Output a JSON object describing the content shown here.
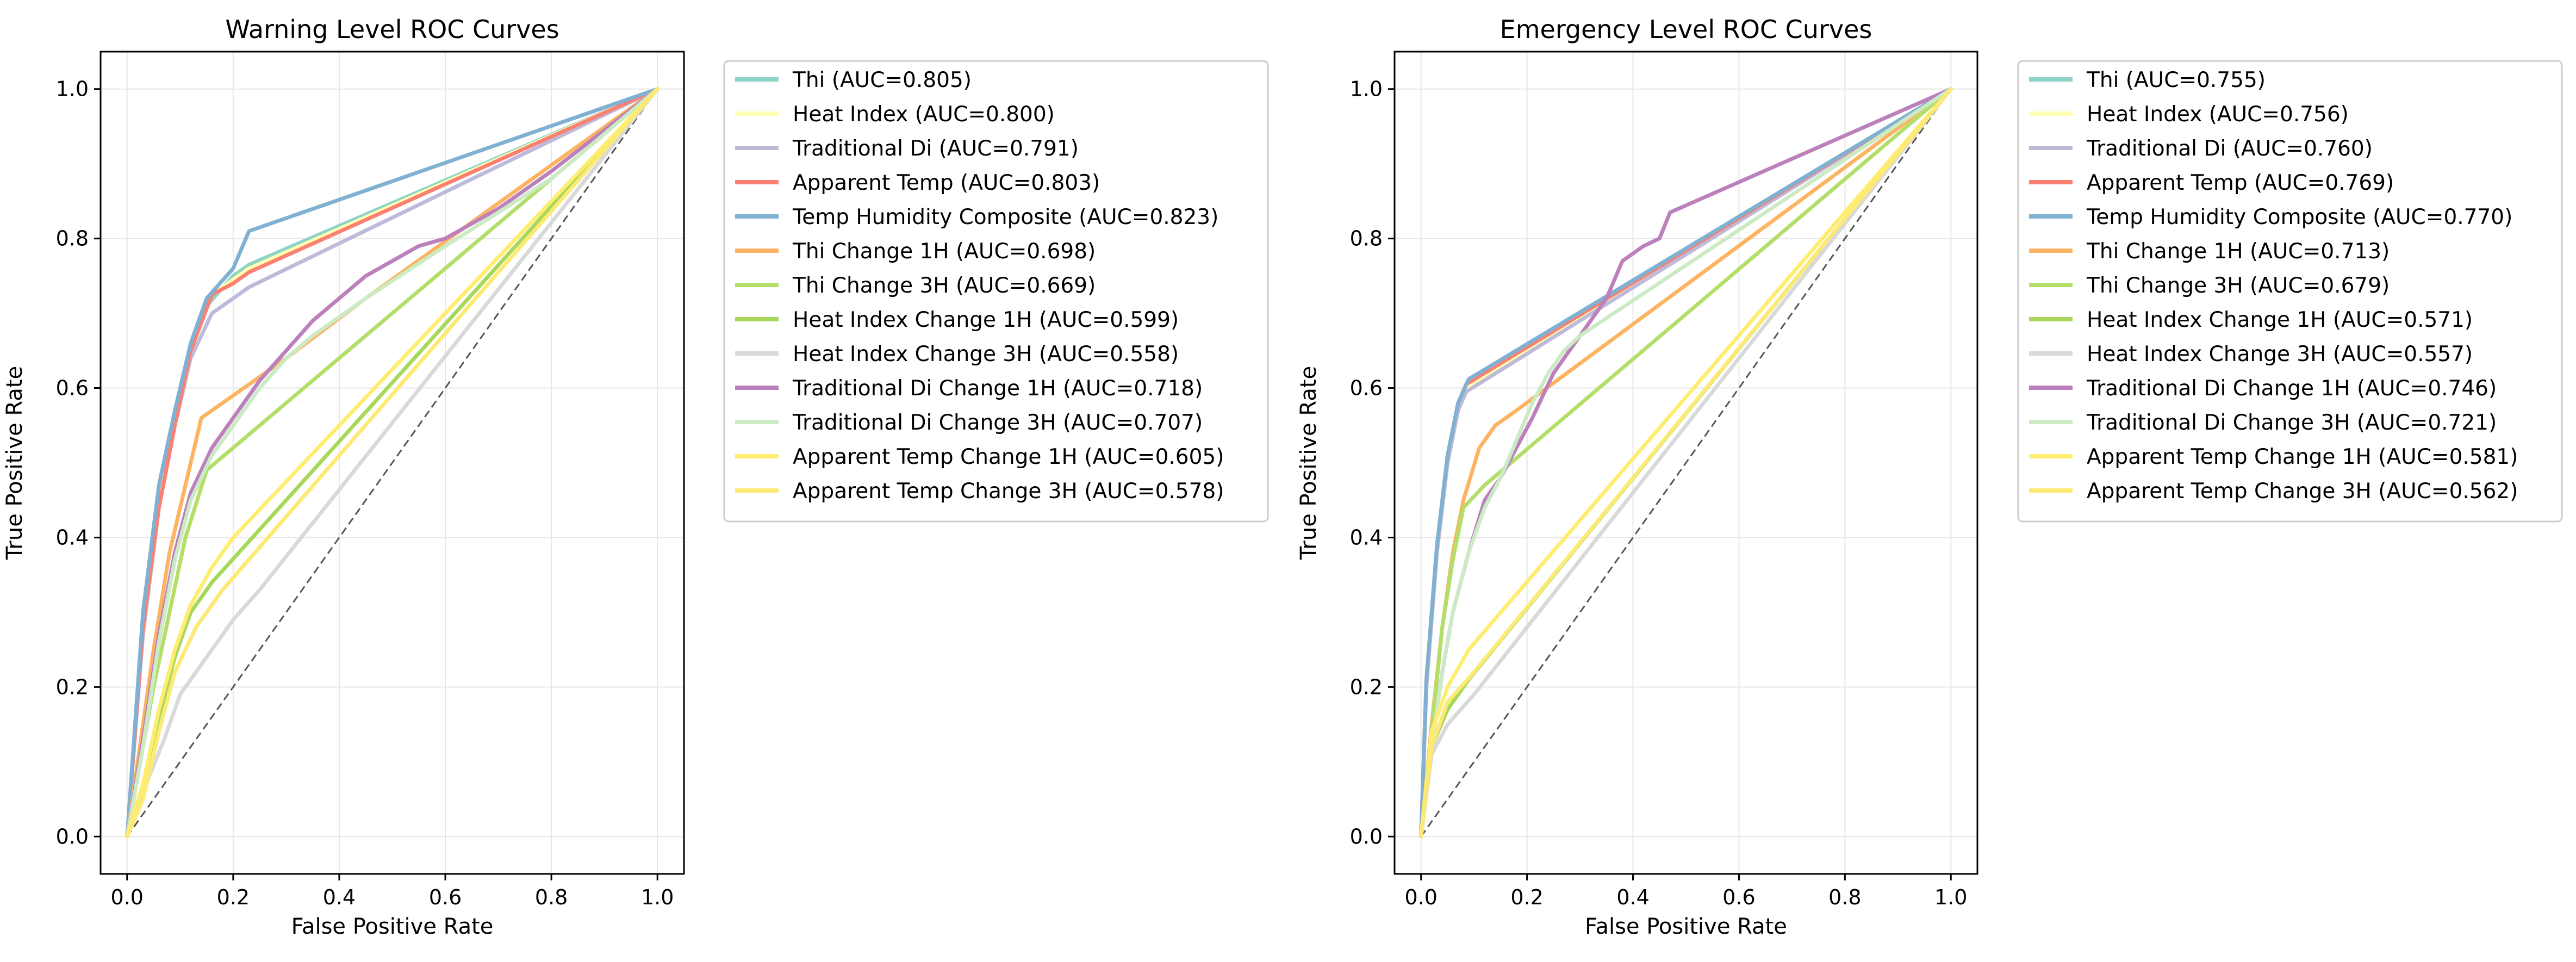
{
  "chart_data": [
    {
      "type": "line",
      "title": "Warning Level ROC Curves",
      "xlabel": "False Positive Rate",
      "ylabel": "True Positive Rate",
      "xlim": [
        -0.05,
        1.05
      ],
      "ylim": [
        -0.05,
        1.05
      ],
      "xticks": [
        "0.0",
        "0.2",
        "0.4",
        "0.6",
        "0.8",
        "1.0"
      ],
      "yticks": [
        "0.0",
        "0.2",
        "0.4",
        "0.6",
        "0.8",
        "1.0"
      ],
      "grid": true,
      "legend_position": "outside-right",
      "series": [
        {
          "name": "Thi (AUC=0.805)",
          "color": "#8dd3c7",
          "points": [
            [
              0,
              0
            ],
            [
              0.03,
              0.28
            ],
            [
              0.06,
              0.46
            ],
            [
              0.09,
              0.56
            ],
            [
              0.12,
              0.65
            ],
            [
              0.15,
              0.71
            ],
            [
              0.2,
              0.75
            ],
            [
              0.23,
              0.765
            ],
            [
              1,
              1
            ]
          ]
        },
        {
          "name": "Heat Index (AUC=0.800)",
          "color": "#ffffb3",
          "points": [
            [
              0,
              0
            ],
            [
              0.03,
              0.28
            ],
            [
              0.06,
              0.45
            ],
            [
              0.09,
              0.56
            ],
            [
              0.12,
              0.65
            ],
            [
              0.15,
              0.72
            ],
            [
              0.2,
              0.745
            ],
            [
              0.23,
              0.76
            ],
            [
              1,
              1
            ]
          ]
        },
        {
          "name": "Traditional Di (AUC=0.791)",
          "color": "#bebada",
          "points": [
            [
              0,
              0
            ],
            [
              0.03,
              0.27
            ],
            [
              0.06,
              0.44
            ],
            [
              0.09,
              0.55
            ],
            [
              0.12,
              0.64
            ],
            [
              0.16,
              0.7
            ],
            [
              0.2,
              0.72
            ],
            [
              0.23,
              0.735
            ],
            [
              1,
              1
            ]
          ]
        },
        {
          "name": "Apparent Temp (AUC=0.803)",
          "color": "#fb8072",
          "points": [
            [
              0,
              0
            ],
            [
              0.03,
              0.28
            ],
            [
              0.06,
              0.44
            ],
            [
              0.09,
              0.55
            ],
            [
              0.12,
              0.65
            ],
            [
              0.16,
              0.725
            ],
            [
              0.2,
              0.74
            ],
            [
              0.23,
              0.755
            ],
            [
              1,
              1
            ]
          ]
        },
        {
          "name": "Temp Humidity Composite (AUC=0.823)",
          "color": "#80b1d3",
          "points": [
            [
              0,
              0
            ],
            [
              0.03,
              0.3
            ],
            [
              0.06,
              0.47
            ],
            [
              0.09,
              0.57
            ],
            [
              0.12,
              0.66
            ],
            [
              0.15,
              0.72
            ],
            [
              0.2,
              0.76
            ],
            [
              0.23,
              0.81
            ],
            [
              1,
              1
            ]
          ]
        },
        {
          "name": "Thi Change 1H (AUC=0.698)",
          "color": "#fdb462",
          "points": [
            [
              0,
              0
            ],
            [
              0.02,
              0.1
            ],
            [
              0.05,
              0.25
            ],
            [
              0.08,
              0.38
            ],
            [
              0.11,
              0.47
            ],
            [
              0.14,
              0.56
            ],
            [
              0.18,
              0.58
            ],
            [
              0.22,
              0.6
            ],
            [
              0.3,
              0.64
            ],
            [
              0.45,
              0.72
            ],
            [
              1,
              1
            ]
          ]
        },
        {
          "name": "Thi Change 3H (AUC=0.669)",
          "color": "#b3de69",
          "points": [
            [
              0,
              0
            ],
            [
              0.02,
              0.08
            ],
            [
              0.05,
              0.2
            ],
            [
              0.08,
              0.3
            ],
            [
              0.11,
              0.4
            ],
            [
              0.15,
              0.49
            ],
            [
              1,
              1
            ]
          ]
        },
        {
          "name": "Heat Index Change 1H (AUC=0.599)",
          "color": "#a8d85b",
          "points": [
            [
              0,
              0
            ],
            [
              0.03,
              0.07
            ],
            [
              0.06,
              0.16
            ],
            [
              0.09,
              0.24
            ],
            [
              0.12,
              0.3
            ],
            [
              0.16,
              0.34
            ],
            [
              1,
              1
            ]
          ]
        },
        {
          "name": "Heat Index Change 3H (AUC=0.558)",
          "color": "#d9d9d9",
          "points": [
            [
              0,
              0
            ],
            [
              0.03,
              0.06
            ],
            [
              0.07,
              0.13
            ],
            [
              0.1,
              0.19
            ],
            [
              0.15,
              0.24
            ],
            [
              0.2,
              0.29
            ],
            [
              0.25,
              0.33
            ],
            [
              1,
              1
            ]
          ]
        },
        {
          "name": "Traditional Di Change 1H (AUC=0.718)",
          "color": "#bc80bd",
          "points": [
            [
              0,
              0
            ],
            [
              0.03,
              0.13
            ],
            [
              0.06,
              0.27
            ],
            [
              0.09,
              0.38
            ],
            [
              0.12,
              0.46
            ],
            [
              0.16,
              0.52
            ],
            [
              0.2,
              0.56
            ],
            [
              0.25,
              0.61
            ],
            [
              0.3,
              0.65
            ],
            [
              0.35,
              0.69
            ],
            [
              0.4,
              0.72
            ],
            [
              0.45,
              0.75
            ],
            [
              0.5,
              0.77
            ],
            [
              0.55,
              0.79
            ],
            [
              0.6,
              0.8
            ],
            [
              0.7,
              0.84
            ],
            [
              0.8,
              0.89
            ],
            [
              1,
              1
            ]
          ]
        },
        {
          "name": "Traditional Di Change 3H (AUC=0.707)",
          "color": "#ccebc5",
          "points": [
            [
              0,
              0
            ],
            [
              0.03,
              0.12
            ],
            [
              0.06,
              0.26
            ],
            [
              0.09,
              0.37
            ],
            [
              0.12,
              0.45
            ],
            [
              0.16,
              0.51
            ],
            [
              0.2,
              0.55
            ],
            [
              0.25,
              0.6
            ],
            [
              0.3,
              0.64
            ],
            [
              0.35,
              0.67
            ],
            [
              0.45,
              0.72
            ],
            [
              0.6,
              0.79
            ],
            [
              0.8,
              0.88
            ],
            [
              1,
              1
            ]
          ]
        },
        {
          "name": "Apparent Temp Change 1H (AUC=0.605)",
          "color": "#ffed6f",
          "points": [
            [
              0,
              0
            ],
            [
              0.03,
              0.07
            ],
            [
              0.06,
              0.17
            ],
            [
              0.09,
              0.25
            ],
            [
              0.12,
              0.31
            ],
            [
              0.16,
              0.36
            ],
            [
              0.2,
              0.4
            ],
            [
              1,
              1
            ]
          ]
        },
        {
          "name": "Apparent Temp Change 3H (AUC=0.578)",
          "color": "#fdea75",
          "points": [
            [
              0,
              0
            ],
            [
              0.03,
              0.05
            ],
            [
              0.06,
              0.14
            ],
            [
              0.09,
              0.22
            ],
            [
              0.13,
              0.28
            ],
            [
              0.18,
              0.33
            ],
            [
              1,
              1
            ]
          ]
        }
      ]
    },
    {
      "type": "line",
      "title": "Emergency Level ROC Curves",
      "xlabel": "False Positive Rate",
      "ylabel": "True Positive Rate",
      "xlim": [
        -0.05,
        1.05
      ],
      "ylim": [
        -0.05,
        1.05
      ],
      "xticks": [
        "0.0",
        "0.2",
        "0.4",
        "0.6",
        "0.8",
        "1.0"
      ],
      "yticks": [
        "0.0",
        "0.2",
        "0.4",
        "0.6",
        "0.8",
        "1.0"
      ],
      "grid": true,
      "legend_position": "outside-right",
      "series": [
        {
          "name": "Thi (AUC=0.755)",
          "color": "#8dd3c7",
          "points": [
            [
              0,
              0
            ],
            [
              0.01,
              0.2
            ],
            [
              0.03,
              0.38
            ],
            [
              0.05,
              0.5
            ],
            [
              0.07,
              0.57
            ],
            [
              0.085,
              0.6
            ],
            [
              1,
              1
            ]
          ]
        },
        {
          "name": "Heat Index (AUC=0.756)",
          "color": "#ffffb3",
          "points": [
            [
              0,
              0
            ],
            [
              0.01,
              0.2
            ],
            [
              0.03,
              0.38
            ],
            [
              0.05,
              0.5
            ],
            [
              0.07,
              0.57
            ],
            [
              0.085,
              0.6
            ],
            [
              1,
              1
            ]
          ]
        },
        {
          "name": "Traditional Di (AUC=0.760)",
          "color": "#bebada",
          "points": [
            [
              0,
              0
            ],
            [
              0.01,
              0.2
            ],
            [
              0.03,
              0.38
            ],
            [
              0.05,
              0.5
            ],
            [
              0.07,
              0.57
            ],
            [
              0.085,
              0.595
            ],
            [
              1,
              1
            ]
          ]
        },
        {
          "name": "Apparent Temp (AUC=0.769)",
          "color": "#fb8072",
          "points": [
            [
              0,
              0
            ],
            [
              0.01,
              0.21
            ],
            [
              0.03,
              0.39
            ],
            [
              0.05,
              0.51
            ],
            [
              0.07,
              0.58
            ],
            [
              0.085,
              0.605
            ],
            [
              1,
              1
            ]
          ]
        },
        {
          "name": "Temp Humidity Composite (AUC=0.770)",
          "color": "#80b1d3",
          "points": [
            [
              0,
              0
            ],
            [
              0.01,
              0.21
            ],
            [
              0.03,
              0.39
            ],
            [
              0.05,
              0.51
            ],
            [
              0.07,
              0.58
            ],
            [
              0.09,
              0.612
            ],
            [
              1,
              1
            ]
          ]
        },
        {
          "name": "Thi Change 1H (AUC=0.713)",
          "color": "#fdb462",
          "points": [
            [
              0,
              0
            ],
            [
              0.02,
              0.15
            ],
            [
              0.04,
              0.28
            ],
            [
              0.06,
              0.38
            ],
            [
              0.08,
              0.45
            ],
            [
              0.11,
              0.52
            ],
            [
              0.14,
              0.55
            ],
            [
              0.18,
              0.57
            ],
            [
              1,
              1
            ]
          ]
        },
        {
          "name": "Thi Change 3H (AUC=0.679)",
          "color": "#b3de69",
          "points": [
            [
              0,
              0
            ],
            [
              0.02,
              0.14
            ],
            [
              0.04,
              0.28
            ],
            [
              0.06,
              0.37
            ],
            [
              0.08,
              0.44
            ],
            [
              0.12,
              0.47
            ],
            [
              1,
              1
            ]
          ]
        },
        {
          "name": "Heat Index Change 1H (AUC=0.571)",
          "color": "#a8d85b",
          "points": [
            [
              0,
              0
            ],
            [
              0.02,
              0.12
            ],
            [
              0.05,
              0.17
            ],
            [
              0.09,
              0.21
            ],
            [
              1,
              1
            ]
          ]
        },
        {
          "name": "Heat Index Change 3H (AUC=0.557)",
          "color": "#d9d9d9",
          "points": [
            [
              0,
              0
            ],
            [
              0.02,
              0.11
            ],
            [
              0.05,
              0.15
            ],
            [
              0.1,
              0.19
            ],
            [
              1,
              1
            ]
          ]
        },
        {
          "name": "Traditional Di Change 1H (AUC=0.746)",
          "color": "#bc80bd",
          "points": [
            [
              0,
              0
            ],
            [
              0.02,
              0.12
            ],
            [
              0.04,
              0.22
            ],
            [
              0.06,
              0.3
            ],
            [
              0.09,
              0.38
            ],
            [
              0.12,
              0.45
            ],
            [
              0.15,
              0.48
            ],
            [
              0.18,
              0.52
            ],
            [
              0.21,
              0.56
            ],
            [
              0.25,
              0.62
            ],
            [
              0.3,
              0.67
            ],
            [
              0.35,
              0.72
            ],
            [
              0.38,
              0.77
            ],
            [
              0.42,
              0.79
            ],
            [
              0.45,
              0.8
            ],
            [
              0.47,
              0.835
            ],
            [
              1,
              1
            ]
          ]
        },
        {
          "name": "Traditional Di Change 3H (AUC=0.721)",
          "color": "#ccebc5",
          "points": [
            [
              0,
              0
            ],
            [
              0.02,
              0.12
            ],
            [
              0.04,
              0.22
            ],
            [
              0.06,
              0.3
            ],
            [
              0.09,
              0.38
            ],
            [
              0.12,
              0.44
            ],
            [
              0.15,
              0.48
            ],
            [
              0.18,
              0.53
            ],
            [
              0.21,
              0.58
            ],
            [
              0.24,
              0.62
            ],
            [
              0.27,
              0.65
            ],
            [
              0.3,
              0.67
            ],
            [
              1,
              1
            ]
          ]
        },
        {
          "name": "Apparent Temp Change 1H (AUC=0.581)",
          "color": "#ffed6f",
          "points": [
            [
              0,
              0
            ],
            [
              0.02,
              0.14
            ],
            [
              0.05,
              0.2
            ],
            [
              0.09,
              0.25
            ],
            [
              1,
              1
            ]
          ]
        },
        {
          "name": "Apparent Temp Change 3H (AUC=0.562)",
          "color": "#fdea75",
          "points": [
            [
              0,
              0
            ],
            [
              0.02,
              0.12
            ],
            [
              0.05,
              0.18
            ],
            [
              0.1,
              0.22
            ],
            [
              1,
              1
            ]
          ]
        }
      ]
    }
  ]
}
